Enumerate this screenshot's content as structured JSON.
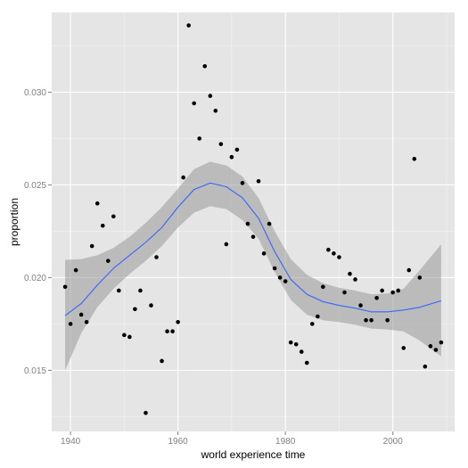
{
  "chart_data": {
    "type": "scatter",
    "title": "",
    "xlabel": "world experience time",
    "ylabel": "proportion",
    "xlim": [
      1936.5,
      2011.5
    ],
    "ylim": [
      0.0117,
      0.0343
    ],
    "x_ticks": [
      1940,
      1960,
      1980,
      2000
    ],
    "x_tick_labels": [
      "1940",
      "1960",
      "1980",
      "2000"
    ],
    "y_ticks": [
      0.015,
      0.02,
      0.025,
      0.03
    ],
    "y_tick_labels": [
      "0.015",
      "0.020",
      "0.025",
      "0.030"
    ],
    "grid": true,
    "legend": "none",
    "colors": {
      "panel_background": "#e5e5e5",
      "grid_major": "#ffffff",
      "grid_minor": "#f2f2f2",
      "points": "#000000",
      "smooth_line": "#3366ff",
      "ribbon": "#999999"
    },
    "points": [
      [
        1939,
        0.0195
      ],
      [
        1940,
        0.0175
      ],
      [
        1941,
        0.0204
      ],
      [
        1942,
        0.018
      ],
      [
        1943,
        0.0176
      ],
      [
        1944,
        0.0217
      ],
      [
        1945,
        0.024
      ],
      [
        1946,
        0.0228
      ],
      [
        1947,
        0.0209
      ],
      [
        1948,
        0.0233
      ],
      [
        1949,
        0.0193
      ],
      [
        1950,
        0.0169
      ],
      [
        1951,
        0.0168
      ],
      [
        1952,
        0.0183
      ],
      [
        1953,
        0.0193
      ],
      [
        1954,
        0.0127
      ],
      [
        1955,
        0.0185
      ],
      [
        1956,
        0.0211
      ],
      [
        1957,
        0.0155
      ],
      [
        1958,
        0.0171
      ],
      [
        1959,
        0.0171
      ],
      [
        1960,
        0.0176
      ],
      [
        1961,
        0.0254
      ],
      [
        1962,
        0.0336
      ],
      [
        1963,
        0.0294
      ],
      [
        1964,
        0.0275
      ],
      [
        1965,
        0.0314
      ],
      [
        1966,
        0.0298
      ],
      [
        1967,
        0.029
      ],
      [
        1968,
        0.0272
      ],
      [
        1969,
        0.0218
      ],
      [
        1970,
        0.0265
      ],
      [
        1971,
        0.0269
      ],
      [
        1972,
        0.0251
      ],
      [
        1973,
        0.0229
      ],
      [
        1974,
        0.0222
      ],
      [
        1975,
        0.0252
      ],
      [
        1976,
        0.0213
      ],
      [
        1977,
        0.0229
      ],
      [
        1978,
        0.0205
      ],
      [
        1979,
        0.02
      ],
      [
        1980,
        0.0198
      ],
      [
        1981,
        0.0165
      ],
      [
        1982,
        0.0164
      ],
      [
        1983,
        0.016
      ],
      [
        1984,
        0.0154
      ],
      [
        1985,
        0.0175
      ],
      [
        1986,
        0.0179
      ],
      [
        1987,
        0.0195
      ],
      [
        1988,
        0.0215
      ],
      [
        1989,
        0.0213
      ],
      [
        1990,
        0.0211
      ],
      [
        1991,
        0.0192
      ],
      [
        1992,
        0.0202
      ],
      [
        1993,
        0.0199
      ],
      [
        1994,
        0.0185
      ],
      [
        1995,
        0.0177
      ],
      [
        1996,
        0.0177
      ],
      [
        1997,
        0.0189
      ],
      [
        1998,
        0.0193
      ],
      [
        1999,
        0.0177
      ],
      [
        2000,
        0.0192
      ],
      [
        2001,
        0.0193
      ],
      [
        2002,
        0.0162
      ],
      [
        2003,
        0.0204
      ],
      [
        2004,
        0.0264
      ],
      [
        2005,
        0.02
      ],
      [
        2006,
        0.0152
      ],
      [
        2007,
        0.0163
      ],
      [
        2008,
        0.0161
      ],
      [
        2009,
        0.0165
      ]
    ],
    "smooth": [
      {
        "x": 1939,
        "y": 0.01795,
        "ymin": 0.015,
        "ymax": 0.02095
      },
      {
        "x": 1942,
        "y": 0.0186,
        "ymin": 0.017,
        "ymax": 0.021
      },
      {
        "x": 1945,
        "y": 0.0196,
        "ymin": 0.0184,
        "ymax": 0.0212
      },
      {
        "x": 1948,
        "y": 0.0205,
        "ymin": 0.0194,
        "ymax": 0.0216
      },
      {
        "x": 1951,
        "y": 0.0212,
        "ymin": 0.0202,
        "ymax": 0.0222
      },
      {
        "x": 1954,
        "y": 0.0219,
        "ymin": 0.0209,
        "ymax": 0.02295
      },
      {
        "x": 1957,
        "y": 0.0227,
        "ymin": 0.0217,
        "ymax": 0.0238
      },
      {
        "x": 1960,
        "y": 0.0238,
        "ymin": 0.0227,
        "ymax": 0.0248
      },
      {
        "x": 1963,
        "y": 0.02475,
        "ymin": 0.0235,
        "ymax": 0.02585
      },
      {
        "x": 1966,
        "y": 0.0251,
        "ymin": 0.02385,
        "ymax": 0.02625
      },
      {
        "x": 1969,
        "y": 0.0249,
        "ymin": 0.0237,
        "ymax": 0.02605
      },
      {
        "x": 1972,
        "y": 0.0243,
        "ymin": 0.0231,
        "ymax": 0.02545
      },
      {
        "x": 1975,
        "y": 0.0232,
        "ymin": 0.0221,
        "ymax": 0.0243
      },
      {
        "x": 1978,
        "y": 0.0214,
        "ymin": 0.0203,
        "ymax": 0.0225
      },
      {
        "x": 1981,
        "y": 0.0199,
        "ymin": 0.0188,
        "ymax": 0.021
      },
      {
        "x": 1984,
        "y": 0.0191,
        "ymin": 0.018,
        "ymax": 0.02015
      },
      {
        "x": 1987,
        "y": 0.0187,
        "ymin": 0.0177,
        "ymax": 0.0197
      },
      {
        "x": 1990,
        "y": 0.0185,
        "ymin": 0.0176,
        "ymax": 0.01945
      },
      {
        "x": 1993,
        "y": 0.01835,
        "ymin": 0.01745,
        "ymax": 0.0193
      },
      {
        "x": 1996,
        "y": 0.01815,
        "ymin": 0.01725,
        "ymax": 0.0191
      },
      {
        "x": 1999,
        "y": 0.01815,
        "ymin": 0.0172,
        "ymax": 0.01915
      },
      {
        "x": 2002,
        "y": 0.01825,
        "ymin": 0.0171,
        "ymax": 0.0194
      },
      {
        "x": 2005,
        "y": 0.0184,
        "ymin": 0.0166,
        "ymax": 0.0204
      },
      {
        "x": 2009,
        "y": 0.01875,
        "ymin": 0.01575,
        "ymax": 0.0218
      }
    ]
  }
}
